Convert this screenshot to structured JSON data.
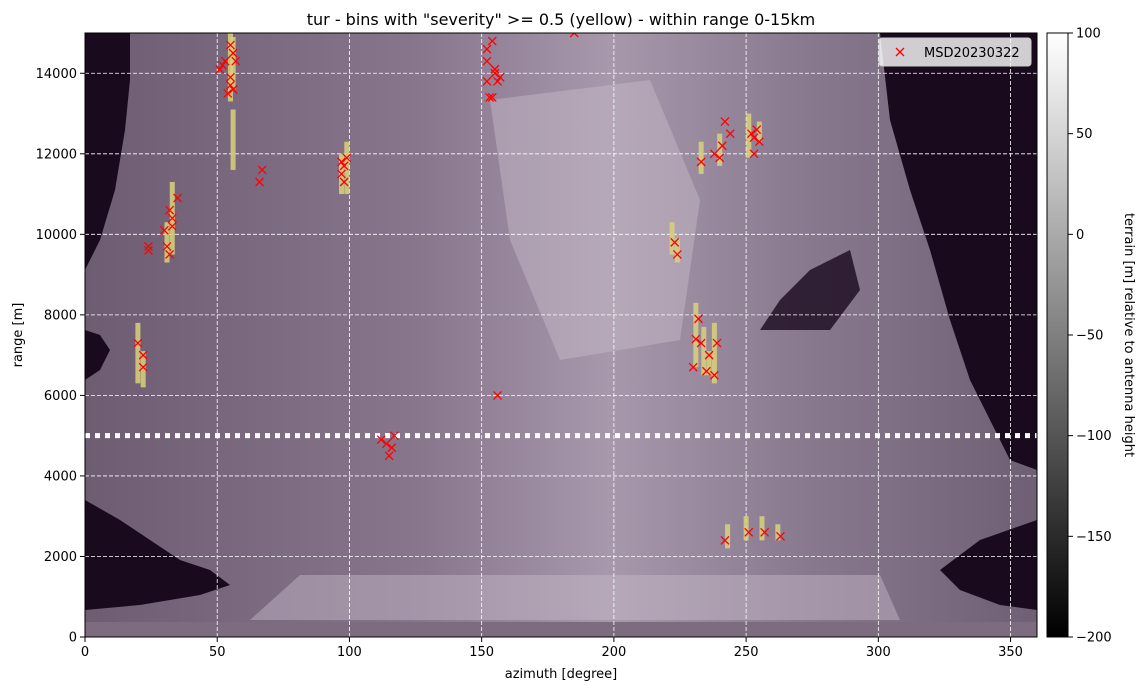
{
  "chart_data": {
    "type": "heatmap",
    "title": "tur - bins with \"severity\" >= 0.5 (yellow) - within range 0-15km",
    "xlabel": "azimuth [degree]",
    "ylabel": "range [m]",
    "xlim": [
      0,
      360
    ],
    "ylim": [
      0,
      15000
    ],
    "xticks": [
      0,
      50,
      100,
      150,
      200,
      250,
      300,
      350
    ],
    "yticks": [
      0,
      2000,
      4000,
      6000,
      8000,
      10000,
      12000,
      14000
    ],
    "grid": true,
    "legend": {
      "placement": "top-right",
      "entries": [
        {
          "label": "MSD20230322",
          "marker": "x",
          "color": "#ff0000"
        }
      ]
    },
    "colorbar": {
      "label": "terrain [m] relative to antenna height",
      "range": [
        -200,
        100
      ],
      "ticks": [
        100,
        50,
        0,
        -50,
        -100,
        -150,
        -200
      ],
      "colormap": "gray"
    },
    "reference_line": {
      "y": 5000,
      "style": "dotted",
      "color": "#ffffff"
    },
    "severity_threshold": 0.5,
    "highlight_color": "#d8d27a",
    "highlight_bins": [
      [
        20,
        6300,
        7800
      ],
      [
        22,
        6200,
        7100
      ],
      [
        31,
        9300,
        10300
      ],
      [
        33,
        9500,
        11300
      ],
      [
        55,
        13300,
        15000
      ],
      [
        56,
        13600,
        14900
      ],
      [
        56,
        11600,
        13100
      ],
      [
        97,
        11000,
        12000
      ],
      [
        99,
        11000,
        12300
      ],
      [
        222,
        9500,
        10300
      ],
      [
        224,
        9300,
        9900
      ],
      [
        231,
        6700,
        8300
      ],
      [
        233,
        11500,
        12300
      ],
      [
        234,
        6500,
        7700
      ],
      [
        236,
        6500,
        7100
      ],
      [
        238,
        6300,
        7800
      ],
      [
        240,
        11700,
        12500
      ],
      [
        251,
        11900,
        13000
      ],
      [
        255,
        12300,
        12800
      ],
      [
        243,
        2200,
        2800
      ],
      [
        250,
        2400,
        3000
      ],
      [
        256,
        2400,
        3000
      ],
      [
        262,
        2400,
        2800
      ]
    ],
    "series": [
      {
        "name": "MSD20230322",
        "marker": "x",
        "color": "#ff0000",
        "points": [
          [
            20,
            7300
          ],
          [
            22,
            7000
          ],
          [
            22,
            6700
          ],
          [
            24,
            9600
          ],
          [
            24,
            9700
          ],
          [
            30,
            10100
          ],
          [
            31,
            9700
          ],
          [
            32,
            9500
          ],
          [
            32,
            10600
          ],
          [
            33,
            10200
          ],
          [
            33,
            10400
          ],
          [
            35,
            10900
          ],
          [
            51,
            14100
          ],
          [
            52,
            14200
          ],
          [
            53,
            14300
          ],
          [
            54,
            13500
          ],
          [
            55,
            13700
          ],
          [
            55,
            13900
          ],
          [
            55,
            14700
          ],
          [
            56,
            14500
          ],
          [
            56,
            13600
          ],
          [
            57,
            14300
          ],
          [
            66,
            11300
          ],
          [
            67,
            11600
          ],
          [
            97,
            11800
          ],
          [
            97,
            11500
          ],
          [
            98,
            11700
          ],
          [
            98,
            11300
          ],
          [
            99,
            11900
          ],
          [
            112,
            4900
          ],
          [
            114,
            4800
          ],
          [
            115,
            4500
          ],
          [
            116,
            4700
          ],
          [
            117,
            5000
          ],
          [
            152,
            14300
          ],
          [
            152,
            14600
          ],
          [
            152,
            13800
          ],
          [
            153,
            13400
          ],
          [
            154,
            14800
          ],
          [
            154,
            13400
          ],
          [
            155,
            14000
          ],
          [
            155,
            14100
          ],
          [
            156,
            13800
          ],
          [
            157,
            13900
          ],
          [
            156,
            6000
          ],
          [
            185,
            15000
          ],
          [
            223,
            9800
          ],
          [
            224,
            9500
          ],
          [
            230,
            6700
          ],
          [
            231,
            7400
          ],
          [
            232,
            7900
          ],
          [
            233,
            11800
          ],
          [
            233,
            7300
          ],
          [
            235,
            6600
          ],
          [
            236,
            7000
          ],
          [
            238,
            6500
          ],
          [
            238,
            12000
          ],
          [
            239,
            7300
          ],
          [
            240,
            11900
          ],
          [
            241,
            12200
          ],
          [
            242,
            12800
          ],
          [
            244,
            12500
          ],
          [
            252,
            12500
          ],
          [
            253,
            12400
          ],
          [
            253,
            12000
          ],
          [
            254,
            12600
          ],
          [
            255,
            12300
          ],
          [
            242,
            2400
          ],
          [
            251,
            2600
          ],
          [
            257,
            2600
          ],
          [
            263,
            2500
          ]
        ]
      }
    ]
  }
}
